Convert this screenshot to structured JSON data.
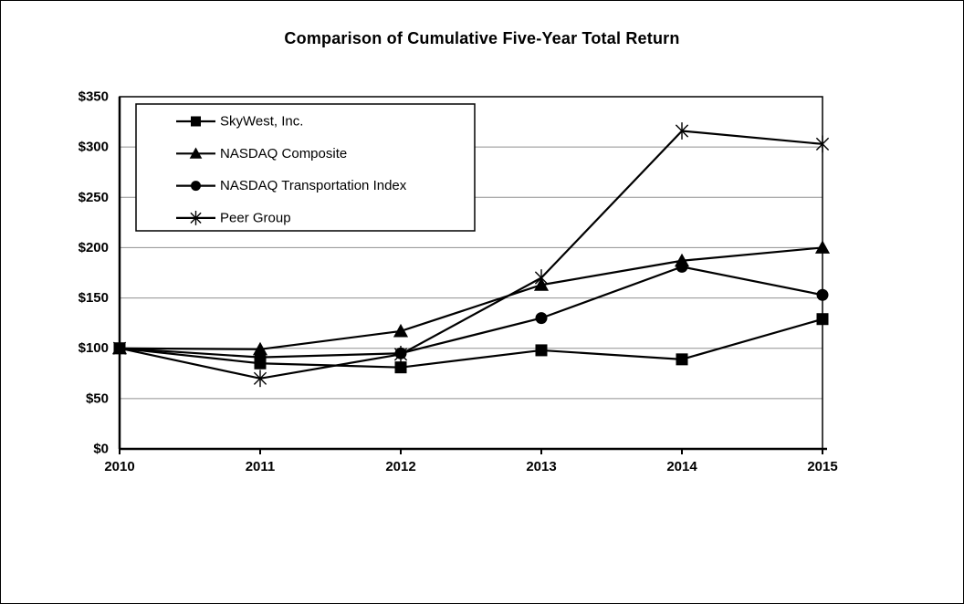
{
  "title": "Comparison of Cumulative Five-Year Total Return",
  "chart_data": {
    "type": "line",
    "x": [
      2010,
      2011,
      2012,
      2013,
      2014,
      2015
    ],
    "xtick_labels": [
      "2010",
      "2011",
      "2012",
      "2013",
      "2014",
      "2015"
    ],
    "ytick_labels": [
      "$0",
      "$50",
      "$100",
      "$150",
      "$200",
      "$250",
      "$300",
      "$350"
    ],
    "ylim": [
      0,
      350
    ],
    "ytick_step": 50,
    "grid": true,
    "legend_position": "top-left-inside",
    "series": [
      {
        "name": "SkyWest, Inc.",
        "marker": "square",
        "values": [
          100,
          85,
          81,
          98,
          89,
          129
        ]
      },
      {
        "name": "NASDAQ Composite",
        "marker": "triangle",
        "values": [
          100,
          99,
          117,
          163,
          187,
          200
        ]
      },
      {
        "name": "NASDAQ Transportation Index",
        "marker": "circle",
        "values": [
          100,
          91,
          95,
          130,
          181,
          153
        ]
      },
      {
        "name": "Peer Group",
        "marker": "star",
        "values": [
          100,
          70,
          94,
          170,
          316,
          303
        ]
      }
    ],
    "colors": {
      "series": "#000000",
      "grid": "#909090",
      "axis": "#000000",
      "background": "#ffffff"
    }
  }
}
